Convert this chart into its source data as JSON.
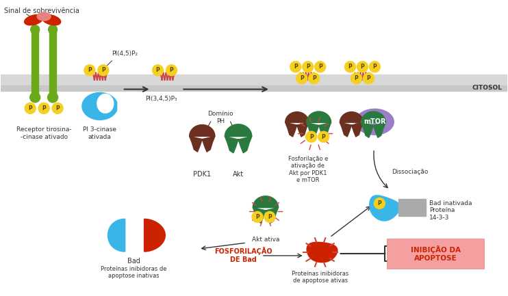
{
  "bg_color": "#ffffff",
  "receptor_color": "#6aaa1a",
  "pi3k_color": "#3ab5e8",
  "pdk1_color": "#6b3020",
  "akt_color": "#2a7a40",
  "mtor_color": "#9b7ec8",
  "bad_blue": "#3ab5e8",
  "bad_red": "#cc2200",
  "p_color": "#f5d020",
  "p_text": "#554400",
  "inhibitor_box": "#f5a0a0",
  "inhibitor_text": "#cc2200",
  "ligand_red": "#cc2200",
  "ligand_pink": "#e88080",
  "hatch_red": "#cc4444",
  "arrow_color": "#333333",
  "text_color": "#333333",
  "gray_color": "#aaaaaa",
  "mem1_color": "#d8d8d8",
  "mem2_color": "#c8c8c8",
  "labels": {
    "survival_signal": "Sinal de sobrevivência",
    "receptor": "Receptor tirosina-\n-cinase ativado",
    "pi3k": "PI 3-cinase\nativada",
    "pi45p2": "PI(4,5)P₂",
    "pi345p3": "PI(3,4,5)P₃",
    "ph_domain": "Domínio\nPH",
    "pdk1": "PDK1",
    "akt": "Akt",
    "fosforilacao": "Fosforilação e\nativação de\nAkt por PDK1\ne mTOR",
    "mtor": "mTOR",
    "dissociacao": "Dissociação",
    "bad_inativada": "Bad inativada",
    "proteina_1433": "Proteína\n14-3-3",
    "akt_ativa": "Akt ativa",
    "bad": "Bad",
    "fosforilacao_bad": "FOSFORILAÇÃO\nDE Bad",
    "proteinas_inativas": "Proteínas inibidoras de\napoptose inativas",
    "proteinas_ativas": "Proteínas inibidoras\nde apoptose ativas",
    "inibicao": "INIBIÇÃO DA\nAPOPTOSE",
    "citosol": "CITOSOL"
  }
}
